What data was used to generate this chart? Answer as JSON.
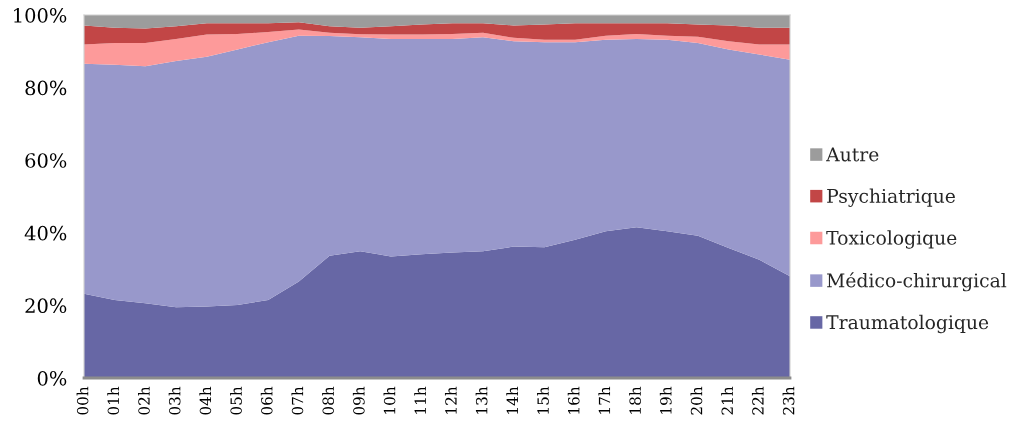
{
  "chart_data": {
    "type": "area",
    "stacked": true,
    "categories": [
      "00h",
      "01h",
      "02h",
      "03h",
      "04h",
      "05h",
      "06h",
      "07h",
      "08h",
      "09h",
      "10h",
      "11h",
      "12h",
      "13h",
      "14h",
      "15h",
      "16h",
      "17h",
      "18h",
      "19h",
      "20h",
      "21h",
      "22h",
      "23h"
    ],
    "series": [
      {
        "name": "Traumatologique",
        "color": "#6767a5",
        "values": [
          23.2,
          21.5,
          20.6,
          19.5,
          19.7,
          20.1,
          21.5,
          26.6,
          33.7,
          34.9,
          33.5,
          34.1,
          34.6,
          34.9,
          36.2,
          36.0,
          38.1,
          40.4,
          41.5,
          40.4,
          39.2,
          35.8,
          32.6,
          28.0
        ]
      },
      {
        "name": "Médico-chirurgical",
        "color": "#9898cb",
        "values": [
          63.4,
          64.8,
          65.3,
          67.8,
          68.8,
          70.4,
          71.0,
          67.7,
          60.5,
          59.0,
          59.9,
          59.3,
          58.8,
          59.0,
          56.6,
          56.5,
          54.4,
          52.8,
          51.9,
          52.8,
          53.1,
          54.7,
          56.5,
          59.7
        ]
      },
      {
        "name": "Toxicologique",
        "color": "#fd9a9a",
        "values": [
          5.3,
          6.0,
          6.4,
          6.1,
          6.1,
          4.3,
          2.8,
          1.7,
          0.9,
          0.8,
          1.2,
          1.2,
          1.4,
          1.2,
          0.9,
          0.7,
          0.7,
          1.1,
          1.4,
          1.1,
          1.7,
          2.3,
          2.8,
          4.2
        ]
      },
      {
        "name": "Psychiatrique",
        "color": "#c24646",
        "values": [
          5.2,
          4.2,
          4.0,
          3.5,
          3.1,
          2.9,
          2.4,
          2.0,
          1.8,
          1.8,
          2.3,
          2.8,
          2.9,
          2.6,
          3.4,
          4.2,
          4.5,
          3.4,
          2.9,
          3.4,
          3.4,
          4.3,
          4.6,
          4.6
        ]
      },
      {
        "name": "Autre",
        "color": "#9c9c9c",
        "values": [
          2.9,
          3.5,
          3.7,
          3.1,
          2.3,
          2.3,
          2.3,
          2.0,
          3.1,
          3.5,
          3.1,
          2.6,
          2.3,
          2.3,
          2.9,
          2.6,
          2.3,
          2.3,
          2.3,
          2.3,
          2.6,
          2.9,
          3.5,
          3.5
        ]
      }
    ],
    "ylim": [
      0,
      100
    ],
    "yticks": [
      {
        "value": 0,
        "label": "0%"
      },
      {
        "value": 20,
        "label": "20%"
      },
      {
        "value": 40,
        "label": "40%"
      },
      {
        "value": 60,
        "label": "60%"
      },
      {
        "value": 80,
        "label": "80%"
      },
      {
        "value": 100,
        "label": "100%"
      }
    ],
    "legend": "right"
  }
}
